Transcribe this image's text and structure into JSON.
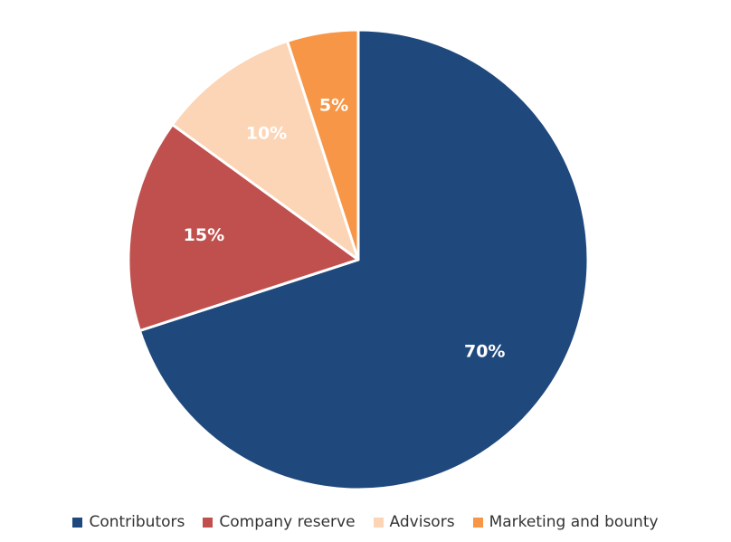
{
  "chart_data": {
    "type": "pie",
    "categories": [
      "Contributors",
      "Company reserve",
      "Advisors",
      "Marketing and bounty"
    ],
    "values": [
      70,
      15,
      10,
      5
    ],
    "labels": [
      "70%",
      "15%",
      "10%",
      "5%"
    ],
    "colors": [
      "#1F487C",
      "#C0504D",
      "#FBD5B5",
      "#F79646"
    ],
    "label_colors": [
      "#FFFFFF",
      "#FFFFFF",
      "#FFFFFF",
      "#FFFFFF"
    ],
    "start_angle_deg": 0,
    "direction": "clockwise",
    "legend_position": "bottom",
    "title": ""
  }
}
